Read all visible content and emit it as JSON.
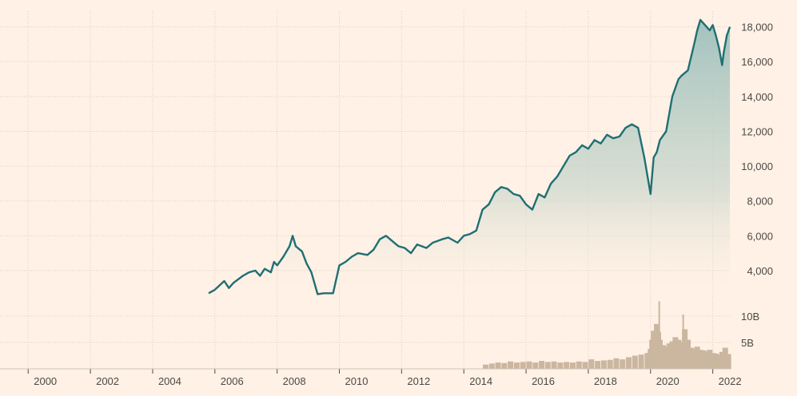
{
  "colors": {
    "background": "#fff1e5",
    "price_line": "#1f6f73",
    "area_top": "#9dc0bc",
    "volume": "#cbb6a0",
    "grid": "#d9cfc6",
    "text": "#4d4845"
  },
  "chart_data": [
    {
      "type": "area",
      "name": "price",
      "title": "",
      "xlabel": "",
      "ylabel": "",
      "xlim": [
        1999.3,
        2022.6
      ],
      "ylim": [
        2300,
        18900
      ],
      "y_ticks": [
        4000,
        6000,
        8000,
        10000,
        12000,
        14000,
        16000,
        18000
      ],
      "y_tick_labels": [
        "4,000",
        "6,000",
        "8,000",
        "10,000",
        "12,000",
        "14,000",
        "16,000",
        "18,000"
      ],
      "x_ticks": [
        2000,
        2002,
        2004,
        2006,
        2008,
        2010,
        2012,
        2014,
        2016,
        2018,
        2020,
        2022
      ],
      "x_tick_labels": [
        "2000",
        "2002",
        "2004",
        "2006",
        "2008",
        "2010",
        "2012",
        "2014",
        "2016",
        "2018",
        "2020",
        "2022"
      ],
      "grid": true,
      "series": [
        {
          "x": [
            2005.8,
            2006.0,
            2006.3,
            2006.45,
            2006.6,
            2006.9,
            2007.1,
            2007.3,
            2007.45,
            2007.6,
            2007.8,
            2007.9,
            2008.0,
            2008.2,
            2008.4,
            2008.5,
            2008.6,
            2008.8,
            2008.95,
            2009.1,
            2009.3,
            2009.5,
            2009.8,
            2010.0,
            2010.2,
            2010.4,
            2010.6,
            2010.9,
            2011.1,
            2011.3,
            2011.5,
            2011.7,
            2011.9,
            2012.1,
            2012.3,
            2012.5,
            2012.8,
            2013.0,
            2013.3,
            2013.5,
            2013.8,
            2014.0,
            2014.2,
            2014.4,
            2014.6,
            2014.8,
            2015.0,
            2015.2,
            2015.4,
            2015.6,
            2015.8,
            2016.0,
            2016.2,
            2016.4,
            2016.6,
            2016.8,
            2017.0,
            2017.2,
            2017.4,
            2017.6,
            2017.8,
            2018.0,
            2018.2,
            2018.4,
            2018.6,
            2018.8,
            2019.0,
            2019.2,
            2019.4,
            2019.6,
            2019.8,
            2020.0,
            2020.1,
            2020.2,
            2020.3,
            2020.5,
            2020.7,
            2020.9,
            2021.0,
            2021.2,
            2021.4,
            2021.5,
            2021.6,
            2021.8,
            2021.9,
            2022.0,
            2022.1,
            2022.2,
            2022.3,
            2022.35,
            2022.45,
            2022.55
          ],
          "y": [
            2700,
            2900,
            3400,
            3000,
            3300,
            3700,
            3900,
            4000,
            3700,
            4100,
            3900,
            4500,
            4300,
            4800,
            5400,
            6000,
            5400,
            5100,
            4400,
            3900,
            2650,
            2700,
            2700,
            4300,
            4500,
            4800,
            5000,
            4900,
            5200,
            5800,
            6000,
            5700,
            5400,
            5300,
            5000,
            5500,
            5300,
            5600,
            5800,
            5900,
            5600,
            6000,
            6100,
            6300,
            7500,
            7800,
            8500,
            8800,
            8700,
            8400,
            8300,
            7800,
            7500,
            8400,
            8200,
            9000,
            9400,
            10000,
            10600,
            10800,
            11200,
            11000,
            11500,
            11300,
            11800,
            11600,
            11700,
            12200,
            12400,
            12200,
            10500,
            8400,
            10500,
            10800,
            11500,
            12000,
            14000,
            15000,
            15200,
            15500,
            17000,
            17800,
            18400,
            18000,
            17800,
            18100,
            17500,
            16800,
            15800,
            16500,
            17500,
            18000
          ]
        }
      ]
    },
    {
      "type": "bar",
      "name": "volume",
      "title": "",
      "xlabel": "",
      "ylabel": "",
      "xlim": [
        1999.3,
        2022.6
      ],
      "ylim": [
        0,
        13000000000
      ],
      "y_ticks": [
        5000000000,
        10000000000
      ],
      "y_tick_labels": [
        "5B",
        "10B"
      ],
      "grid": true,
      "series": [
        {
          "x": [
            2014.7,
            2014.9,
            2015.1,
            2015.3,
            2015.5,
            2015.7,
            2015.9,
            2016.1,
            2016.3,
            2016.5,
            2016.7,
            2016.9,
            2017.1,
            2017.3,
            2017.5,
            2017.7,
            2017.9,
            2018.1,
            2018.3,
            2018.5,
            2018.7,
            2018.9,
            2019.1,
            2019.3,
            2019.5,
            2019.7,
            2019.9,
            2020.0,
            2020.05,
            2020.1,
            2020.15,
            2020.2,
            2020.25,
            2020.3,
            2020.4,
            2020.5,
            2020.6,
            2020.7,
            2020.8,
            2020.9,
            2021.0,
            2021.1,
            2021.2,
            2021.3,
            2021.4,
            2021.5,
            2021.6,
            2021.7,
            2021.8,
            2021.9,
            2022.0,
            2022.1,
            2022.2,
            2022.3,
            2022.4,
            2022.5
          ],
          "y": [
            800000000,
            1000000000,
            1200000000,
            1100000000,
            1400000000,
            1200000000,
            1300000000,
            1400000000,
            1200000000,
            1500000000,
            1300000000,
            1400000000,
            1200000000,
            1300000000,
            1200000000,
            1400000000,
            1300000000,
            1800000000,
            1500000000,
            1600000000,
            1700000000,
            2000000000,
            1800000000,
            2200000000,
            2500000000,
            2700000000,
            3000000000,
            3800000000,
            5500000000,
            7200000000,
            6000000000,
            8500000000,
            7000000000,
            5500000000,
            4500000000,
            4200000000,
            4800000000,
            5200000000,
            6000000000,
            5500000000,
            5000000000,
            7500000000,
            5500000000,
            4000000000,
            3800000000,
            4200000000,
            3600000000,
            3500000000,
            3200000000,
            3600000000,
            3000000000,
            2900000000,
            2600000000,
            3200000000,
            4000000000,
            2800000000
          ]
        },
        {
          "x": [
            2020.28,
            2021.05
          ],
          "y": [
            12800000000,
            10300000000
          ]
        }
      ]
    }
  ]
}
